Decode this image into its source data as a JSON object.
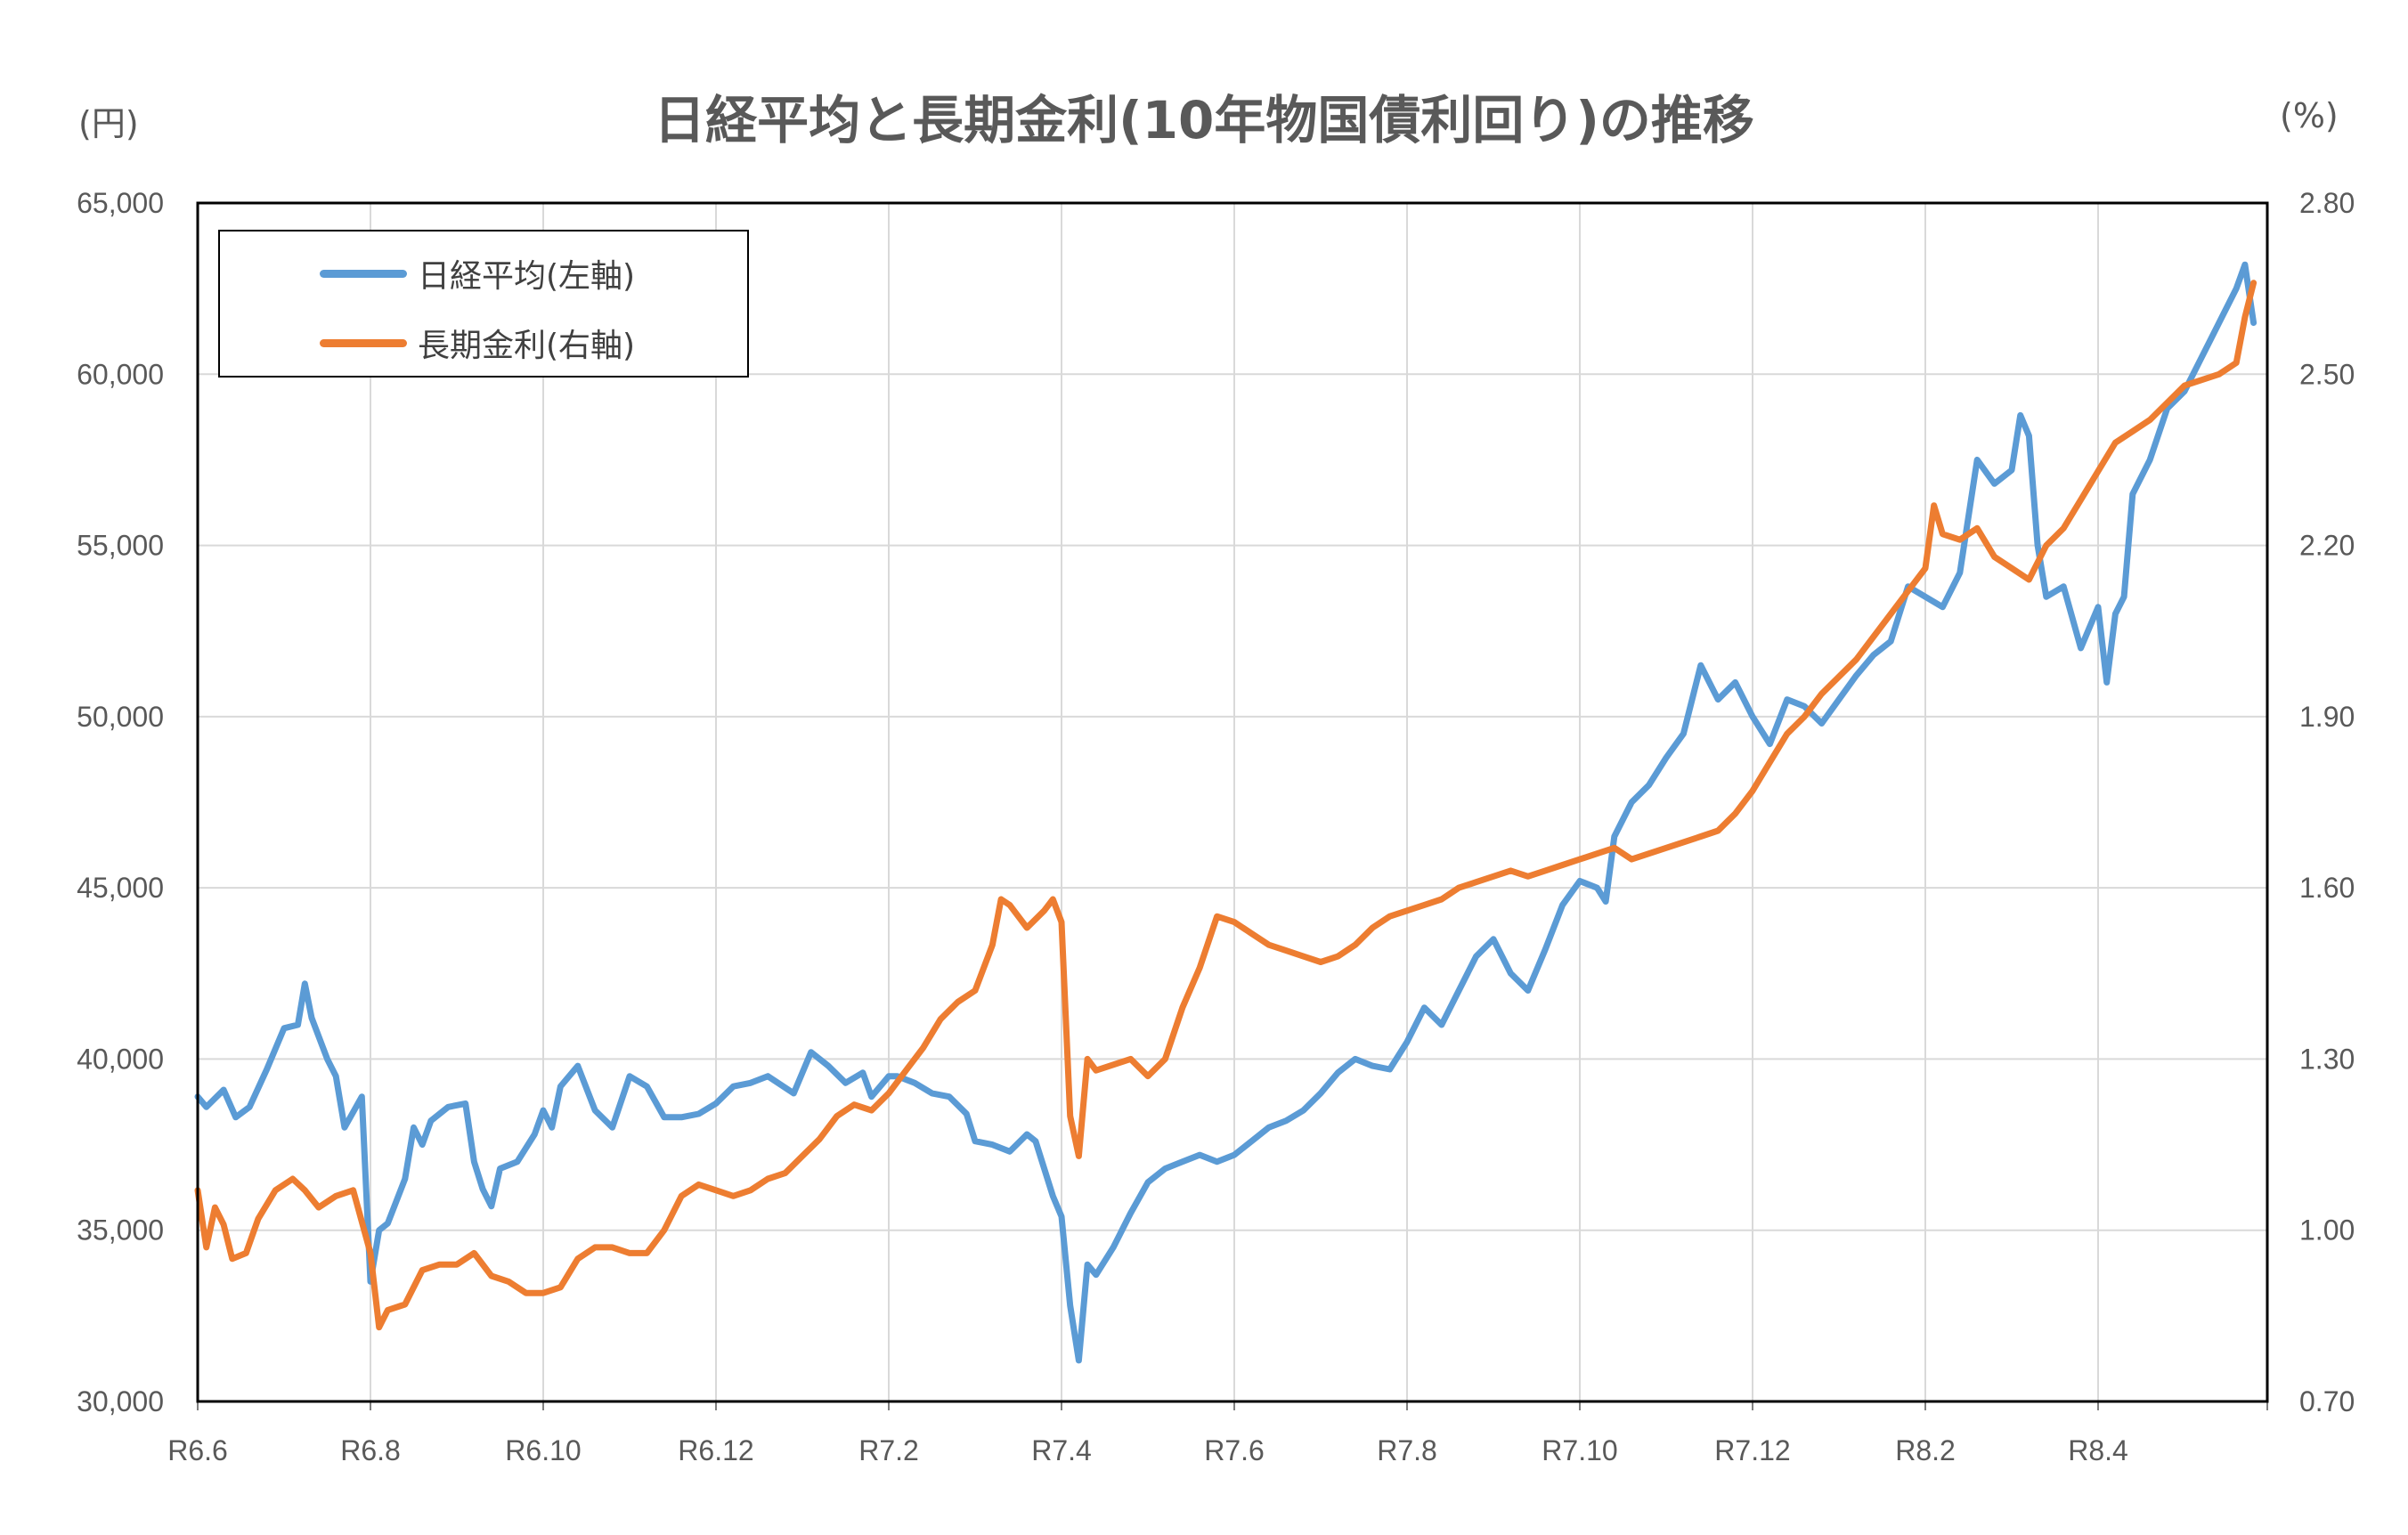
{
  "title": "日経平均と長期金利(10年物国債利回り)の推移",
  "left_unit": "(円)",
  "right_unit": "(%)",
  "legend": [
    {
      "label": "日経平均(左軸)",
      "color": "#5b9bd5"
    },
    {
      "label": "長期金利(右軸)",
      "color": "#ed7d31"
    }
  ],
  "chart_data": {
    "type": "line",
    "title": "日経平均と長期金利(10年物国債利回り)の推移",
    "x_ticks": [
      "R6.6",
      "R6.8",
      "R6.10",
      "R6.12",
      "R7.2",
      "R7.4",
      "R7.6",
      "R7.8",
      "R7.10",
      "R7.12",
      "R8.2",
      "R8.4"
    ],
    "x_range": [
      "R6.6",
      "R8.5 (end)"
    ],
    "y_left": {
      "label": "(円)",
      "min": 30000,
      "max": 65000,
      "ticks": [
        "30,000",
        "35,000",
        "40,000",
        "45,000",
        "50,000",
        "55,000",
        "60,000",
        "65,000"
      ]
    },
    "y_right": {
      "label": "(%)",
      "min": 0.7,
      "max": 2.8,
      "ticks": [
        "0.70",
        "1.00",
        "1.30",
        "1.60",
        "1.90",
        "2.20",
        "2.50",
        "2.80"
      ]
    },
    "grid": true,
    "legend_position": "top-left",
    "series": [
      {
        "name": "日経平均(左軸)",
        "axis": "left",
        "color": "#5b9bd5",
        "points": [
          [
            0,
            38900
          ],
          [
            0.05,
            38600
          ],
          [
            0.15,
            39100
          ],
          [
            0.22,
            38300
          ],
          [
            0.3,
            38600
          ],
          [
            0.4,
            39700
          ],
          [
            0.5,
            40900
          ],
          [
            0.58,
            41000
          ],
          [
            0.62,
            42200
          ],
          [
            0.66,
            41200
          ],
          [
            0.75,
            40000
          ],
          [
            0.8,
            39500
          ],
          [
            0.85,
            38000
          ],
          [
            0.95,
            38900
          ],
          [
            1.0,
            33500
          ],
          [
            1.05,
            35000
          ],
          [
            1.1,
            35200
          ],
          [
            1.2,
            36500
          ],
          [
            1.25,
            38000
          ],
          [
            1.3,
            37500
          ],
          [
            1.35,
            38200
          ],
          [
            1.45,
            38600
          ],
          [
            1.55,
            38700
          ],
          [
            1.6,
            37000
          ],
          [
            1.65,
            36200
          ],
          [
            1.7,
            35700
          ],
          [
            1.75,
            36800
          ],
          [
            1.85,
            37000
          ],
          [
            1.95,
            37800
          ],
          [
            2.0,
            38500
          ],
          [
            2.05,
            38000
          ],
          [
            2.1,
            39200
          ],
          [
            2.2,
            39800
          ],
          [
            2.3,
            38500
          ],
          [
            2.4,
            38000
          ],
          [
            2.5,
            39500
          ],
          [
            2.6,
            39200
          ],
          [
            2.7,
            38300
          ],
          [
            2.8,
            38300
          ],
          [
            2.9,
            38400
          ],
          [
            3.0,
            38700
          ],
          [
            3.1,
            39200
          ],
          [
            3.2,
            39300
          ],
          [
            3.3,
            39500
          ],
          [
            3.45,
            39000
          ],
          [
            3.55,
            40200
          ],
          [
            3.65,
            39800
          ],
          [
            3.75,
            39300
          ],
          [
            3.85,
            39600
          ],
          [
            3.9,
            38900
          ],
          [
            4.0,
            39500
          ],
          [
            4.05,
            39500
          ],
          [
            4.15,
            39300
          ],
          [
            4.25,
            39000
          ],
          [
            4.35,
            38900
          ],
          [
            4.45,
            38400
          ],
          [
            4.5,
            37600
          ],
          [
            4.6,
            37500
          ],
          [
            4.7,
            37300
          ],
          [
            4.8,
            37800
          ],
          [
            4.85,
            37600
          ],
          [
            4.95,
            36000
          ],
          [
            5.0,
            35400
          ],
          [
            5.05,
            32800
          ],
          [
            5.1,
            31200
          ],
          [
            5.15,
            34000
          ],
          [
            5.2,
            33700
          ],
          [
            5.3,
            34500
          ],
          [
            5.4,
            35500
          ],
          [
            5.5,
            36400
          ],
          [
            5.6,
            36800
          ],
          [
            5.7,
            37000
          ],
          [
            5.8,
            37200
          ],
          [
            5.9,
            37000
          ],
          [
            6.0,
            37200
          ],
          [
            6.1,
            37600
          ],
          [
            6.2,
            38000
          ],
          [
            6.3,
            38200
          ],
          [
            6.4,
            38500
          ],
          [
            6.5,
            39000
          ],
          [
            6.6,
            39600
          ],
          [
            6.7,
            40000
          ],
          [
            6.8,
            39800
          ],
          [
            6.9,
            39700
          ],
          [
            7.0,
            40500
          ],
          [
            7.1,
            41500
          ],
          [
            7.2,
            41000
          ],
          [
            7.3,
            42000
          ],
          [
            7.4,
            43000
          ],
          [
            7.5,
            43500
          ],
          [
            7.6,
            42500
          ],
          [
            7.7,
            42000
          ],
          [
            7.8,
            43200
          ],
          [
            7.9,
            44500
          ],
          [
            8.0,
            45200
          ],
          [
            8.1,
            45000
          ],
          [
            8.15,
            44600
          ],
          [
            8.2,
            46500
          ],
          [
            8.3,
            47500
          ],
          [
            8.4,
            48000
          ],
          [
            8.5,
            48800
          ],
          [
            8.6,
            49500
          ],
          [
            8.7,
            51500
          ],
          [
            8.75,
            51000
          ],
          [
            8.8,
            50500
          ],
          [
            8.9,
            51000
          ],
          [
            9.0,
            50000
          ],
          [
            9.1,
            49200
          ],
          [
            9.2,
            50500
          ],
          [
            9.3,
            50300
          ],
          [
            9.4,
            49800
          ],
          [
            9.5,
            50500
          ],
          [
            9.6,
            51200
          ],
          [
            9.7,
            51800
          ],
          [
            9.8,
            52200
          ],
          [
            9.9,
            53800
          ],
          [
            10.0,
            53500
          ],
          [
            10.1,
            53200
          ],
          [
            10.2,
            54200
          ],
          [
            10.3,
            57500
          ],
          [
            10.4,
            56800
          ],
          [
            10.5,
            57200
          ],
          [
            10.55,
            58800
          ],
          [
            10.6,
            58200
          ],
          [
            10.65,
            55000
          ],
          [
            10.7,
            53500
          ],
          [
            10.8,
            53800
          ],
          [
            10.9,
            52000
          ],
          [
            11.0,
            53200
          ],
          [
            11.05,
            51000
          ],
          [
            11.1,
            53000
          ],
          [
            11.15,
            53500
          ],
          [
            11.2,
            56500
          ],
          [
            11.3,
            57500
          ],
          [
            11.4,
            59000
          ],
          [
            11.5,
            59500
          ],
          [
            11.6,
            60500
          ],
          [
            11.7,
            61500
          ],
          [
            11.8,
            62500
          ],
          [
            11.85,
            63200
          ],
          [
            11.9,
            61500
          ]
        ]
      },
      {
        "name": "長期金利(右軸)",
        "axis": "right",
        "color": "#ed7d31",
        "points": [
          [
            0,
            1.07
          ],
          [
            0.05,
            0.97
          ],
          [
            0.1,
            1.04
          ],
          [
            0.15,
            1.01
          ],
          [
            0.2,
            0.95
          ],
          [
            0.28,
            0.96
          ],
          [
            0.35,
            1.02
          ],
          [
            0.45,
            1.07
          ],
          [
            0.55,
            1.09
          ],
          [
            0.62,
            1.07
          ],
          [
            0.7,
            1.04
          ],
          [
            0.8,
            1.06
          ],
          [
            0.9,
            1.07
          ],
          [
            1.0,
            0.96
          ],
          [
            1.05,
            0.83
          ],
          [
            1.1,
            0.86
          ],
          [
            1.2,
            0.87
          ],
          [
            1.3,
            0.93
          ],
          [
            1.4,
            0.94
          ],
          [
            1.5,
            0.94
          ],
          [
            1.6,
            0.96
          ],
          [
            1.7,
            0.92
          ],
          [
            1.8,
            0.91
          ],
          [
            1.9,
            0.89
          ],
          [
            2.0,
            0.89
          ],
          [
            2.1,
            0.9
          ],
          [
            2.2,
            0.95
          ],
          [
            2.3,
            0.97
          ],
          [
            2.4,
            0.97
          ],
          [
            2.5,
            0.96
          ],
          [
            2.6,
            0.96
          ],
          [
            2.7,
            1.0
          ],
          [
            2.8,
            1.06
          ],
          [
            2.9,
            1.08
          ],
          [
            3.0,
            1.07
          ],
          [
            3.1,
            1.06
          ],
          [
            3.2,
            1.07
          ],
          [
            3.3,
            1.09
          ],
          [
            3.4,
            1.1
          ],
          [
            3.5,
            1.13
          ],
          [
            3.6,
            1.16
          ],
          [
            3.7,
            1.2
          ],
          [
            3.8,
            1.22
          ],
          [
            3.9,
            1.21
          ],
          [
            4.0,
            1.24
          ],
          [
            4.1,
            1.28
          ],
          [
            4.2,
            1.32
          ],
          [
            4.3,
            1.37
          ],
          [
            4.4,
            1.4
          ],
          [
            4.5,
            1.42
          ],
          [
            4.6,
            1.5
          ],
          [
            4.65,
            1.58
          ],
          [
            4.7,
            1.57
          ],
          [
            4.8,
            1.53
          ],
          [
            4.9,
            1.56
          ],
          [
            4.95,
            1.58
          ],
          [
            5.0,
            1.54
          ],
          [
            5.05,
            1.2
          ],
          [
            5.1,
            1.13
          ],
          [
            5.15,
            1.3
          ],
          [
            5.2,
            1.28
          ],
          [
            5.3,
            1.29
          ],
          [
            5.4,
            1.3
          ],
          [
            5.5,
            1.27
          ],
          [
            5.6,
            1.3
          ],
          [
            5.7,
            1.39
          ],
          [
            5.8,
            1.46
          ],
          [
            5.9,
            1.55
          ],
          [
            6.0,
            1.54
          ],
          [
            6.1,
            1.52
          ],
          [
            6.2,
            1.5
          ],
          [
            6.3,
            1.49
          ],
          [
            6.4,
            1.48
          ],
          [
            6.5,
            1.47
          ],
          [
            6.6,
            1.48
          ],
          [
            6.7,
            1.5
          ],
          [
            6.8,
            1.53
          ],
          [
            6.9,
            1.55
          ],
          [
            7.0,
            1.56
          ],
          [
            7.1,
            1.57
          ],
          [
            7.2,
            1.58
          ],
          [
            7.3,
            1.6
          ],
          [
            7.4,
            1.61
          ],
          [
            7.5,
            1.62
          ],
          [
            7.6,
            1.63
          ],
          [
            7.7,
            1.62
          ],
          [
            7.8,
            1.63
          ],
          [
            7.9,
            1.64
          ],
          [
            8.0,
            1.65
          ],
          [
            8.1,
            1.66
          ],
          [
            8.2,
            1.67
          ],
          [
            8.3,
            1.65
          ],
          [
            8.4,
            1.66
          ],
          [
            8.5,
            1.67
          ],
          [
            8.6,
            1.68
          ],
          [
            8.7,
            1.69
          ],
          [
            8.8,
            1.7
          ],
          [
            8.9,
            1.73
          ],
          [
            9.0,
            1.77
          ],
          [
            9.1,
            1.82
          ],
          [
            9.2,
            1.87
          ],
          [
            9.3,
            1.9
          ],
          [
            9.4,
            1.94
          ],
          [
            9.5,
            1.97
          ],
          [
            9.6,
            2.0
          ],
          [
            9.7,
            2.04
          ],
          [
            9.8,
            2.08
          ],
          [
            9.9,
            2.12
          ],
          [
            10.0,
            2.16
          ],
          [
            10.05,
            2.27
          ],
          [
            10.1,
            2.22
          ],
          [
            10.2,
            2.21
          ],
          [
            10.3,
            2.23
          ],
          [
            10.4,
            2.18
          ],
          [
            10.5,
            2.16
          ],
          [
            10.6,
            2.14
          ],
          [
            10.7,
            2.2
          ],
          [
            10.8,
            2.23
          ],
          [
            10.9,
            2.28
          ],
          [
            11.0,
            2.33
          ],
          [
            11.1,
            2.38
          ],
          [
            11.2,
            2.4
          ],
          [
            11.3,
            2.42
          ],
          [
            11.4,
            2.45
          ],
          [
            11.5,
            2.48
          ],
          [
            11.6,
            2.49
          ],
          [
            11.7,
            2.5
          ],
          [
            11.8,
            2.52
          ],
          [
            11.85,
            2.6
          ],
          [
            11.9,
            2.66
          ]
        ]
      }
    ]
  }
}
